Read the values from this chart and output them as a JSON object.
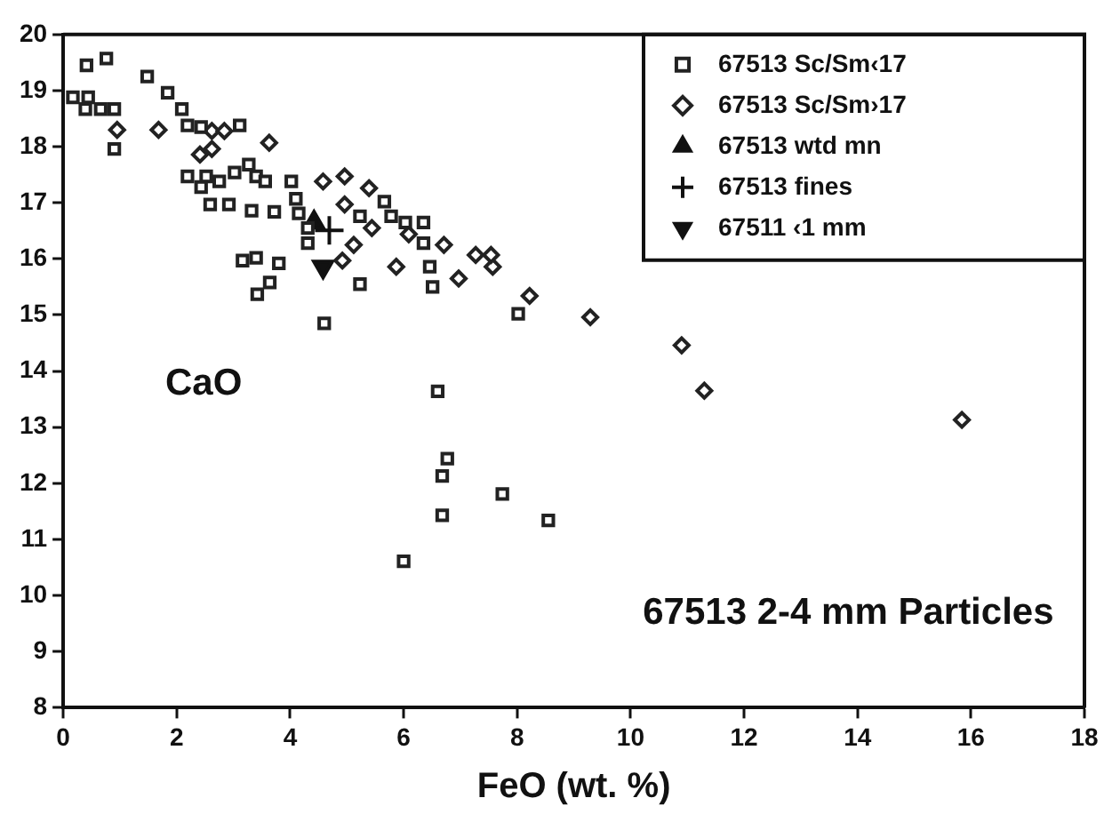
{
  "chart_data": {
    "type": "scatter",
    "xlabel": "FeO (wt. %)",
    "xlim": [
      0,
      18
    ],
    "xticks": [
      0,
      2,
      4,
      6,
      8,
      10,
      12,
      14,
      16,
      18
    ],
    "ylim": [
      8,
      20
    ],
    "yticks": [
      8,
      9,
      10,
      11,
      12,
      13,
      14,
      15,
      16,
      17,
      18,
      19,
      20
    ],
    "grid": false,
    "legend": "top right",
    "annotations": [
      "CaO",
      "67513 2-4 mm Particles"
    ],
    "series": [
      {
        "name": "67513 Sc/Sm‹17",
        "color": "#222222",
        "marker": "square",
        "x": [
          0.41,
          0.76,
          0.17,
          0.44,
          0.39,
          0.66,
          0.9,
          0.9,
          1.48,
          1.84,
          2.09,
          2.19,
          2.43,
          3.11,
          2.19,
          2.52,
          2.43,
          2.75,
          2.59,
          2.92,
          3.02,
          3.27,
          3.4,
          3.56,
          3.32,
          3.72,
          4.02,
          4.1,
          4.15,
          3.8,
          3.16,
          3.4,
          3.64,
          3.42,
          4.6,
          5.23,
          4.31,
          4.31,
          5.78,
          6.03,
          6.35,
          6.35,
          6.46,
          6.51,
          8.02,
          5.66,
          5.23,
          6.6,
          6.77,
          6.68,
          7.74,
          6.68,
          8.55,
          6.0
        ],
        "values": [
          19.45,
          19.57,
          18.88,
          18.88,
          18.67,
          18.67,
          18.67,
          17.96,
          19.25,
          18.96,
          18.67,
          18.38,
          18.35,
          18.38,
          17.47,
          17.47,
          17.28,
          17.38,
          16.97,
          16.97,
          17.54,
          17.68,
          17.47,
          17.38,
          16.86,
          16.84,
          17.38,
          17.07,
          16.81,
          15.92,
          15.97,
          16.02,
          15.58,
          15.37,
          14.85,
          15.55,
          16.55,
          16.28,
          16.76,
          16.65,
          16.65,
          16.28,
          15.86,
          15.5,
          15.02,
          17.02,
          16.76,
          13.64,
          12.44,
          12.13,
          11.81,
          11.43,
          11.34,
          10.61
        ]
      },
      {
        "name": "67513 Sc/Sm›17",
        "color": "#222222",
        "marker": "diamond",
        "x": [
          0.95,
          1.68,
          2.62,
          2.84,
          2.41,
          2.62,
          3.63,
          4.58,
          4.96,
          5.39,
          4.96,
          5.44,
          5.12,
          4.92,
          5.87,
          6.09,
          6.71,
          6.97,
          7.27,
          7.57,
          7.54,
          8.22,
          11.3,
          15.84,
          10.9,
          9.29
        ],
        "values": [
          18.3,
          18.3,
          18.28,
          18.28,
          17.86,
          17.96,
          18.07,
          17.38,
          17.47,
          17.26,
          16.97,
          16.55,
          16.25,
          15.97,
          15.86,
          16.44,
          16.25,
          15.65,
          16.07,
          15.86,
          16.07,
          15.34,
          13.65,
          13.13,
          14.46,
          14.96
        ]
      },
      {
        "name": "67513 wtd mn",
        "color": "#111111",
        "marker": "triangle",
        "x": [
          4.42
        ],
        "values": [
          16.65
        ]
      },
      {
        "name": "67513 fines",
        "color": "#111111",
        "marker": "cross",
        "x": [
          4.69
        ],
        "values": [
          16.51
        ]
      },
      {
        "name": "67511 ‹1 mm",
        "color": "#111111",
        "marker": "triangle_down",
        "x": [
          4.58
        ],
        "values": [
          15.86
        ]
      }
    ]
  }
}
